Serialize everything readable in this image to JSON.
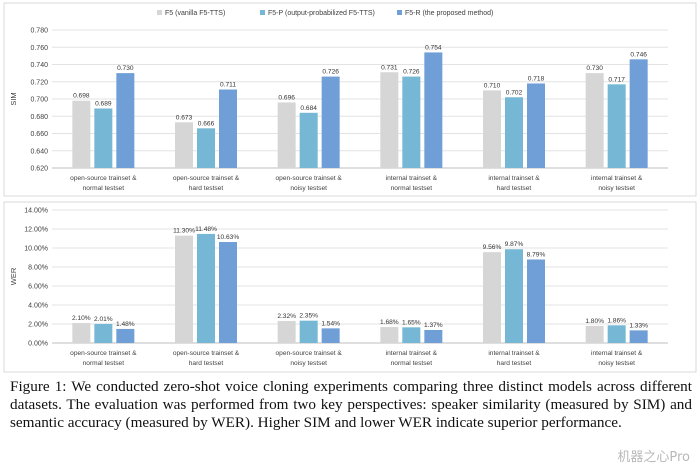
{
  "colors": {
    "f5": "#d6d6d6",
    "f5p": "#75b7d5",
    "f5r": "#6f9fd6",
    "grid": "#e3e3e3",
    "axis": "#bfbfbf",
    "text": "#404040"
  },
  "chart_data": [
    {
      "type": "bar",
      "ylabel": "SIM",
      "ylim": [
        0.62,
        0.78
      ],
      "yticks": [
        "0.620",
        "0.640",
        "0.660",
        "0.680",
        "0.700",
        "0.720",
        "0.740",
        "0.760",
        "0.780"
      ],
      "categories": [
        [
          "open-source trainset &",
          "normal testset"
        ],
        [
          "open-source trainset &",
          "hard testset"
        ],
        [
          "open-source trainset &",
          "noisy testset"
        ],
        [
          "internal trainset &",
          "normal testset"
        ],
        [
          "internal trainset &",
          "hard testset"
        ],
        [
          "internal trainset &",
          "noisy testset"
        ]
      ],
      "legend": "top",
      "series": [
        {
          "name": "F5 (vanilla F5-TTS)",
          "color": "#d6d6d6",
          "values": [
            0.698,
            0.673,
            0.696,
            0.731,
            0.71,
            0.73
          ],
          "labels": [
            "0.698",
            "0.673",
            "0.696",
            "0.731",
            "0.710",
            "0.730"
          ]
        },
        {
          "name": "F5-P (output-probabilized F5-TTS)",
          "color": "#75b7d5",
          "values": [
            0.689,
            0.666,
            0.684,
            0.726,
            0.702,
            0.717
          ],
          "labels": [
            "0.689",
            "0.666",
            "0.684",
            "0.726",
            "0.702",
            "0.717"
          ]
        },
        {
          "name": "F5-R (the proposed method)",
          "color": "#6f9fd6",
          "values": [
            0.73,
            0.711,
            0.726,
            0.754,
            0.718,
            0.746
          ],
          "labels": [
            "0.730",
            "0.711",
            "0.726",
            "0.754",
            "0.718",
            "0.746"
          ]
        }
      ]
    },
    {
      "type": "bar",
      "ylabel": "WER",
      "ylim": [
        0,
        14
      ],
      "yticks": [
        "0.00%",
        "2.00%",
        "4.00%",
        "6.00%",
        "8.00%",
        "10.00%",
        "12.00%",
        "14.00%"
      ],
      "categories": [
        [
          "open-source trainset &",
          "normal testset"
        ],
        [
          "open-source trainset &",
          "hard testset"
        ],
        [
          "open-source trainset &",
          "noisy testset"
        ],
        [
          "internal trainset &",
          "normal testset"
        ],
        [
          "internal trainset &",
          "hard testset"
        ],
        [
          "internal trainset &",
          "noisy testset"
        ]
      ],
      "series": [
        {
          "color": "#d6d6d6",
          "values": [
            2.1,
            11.3,
            2.32,
            1.68,
            9.56,
            1.8
          ],
          "labels": [
            "2.10%",
            "11.30%",
            "2.32%",
            "1.68%",
            "9.56%",
            "1.80%"
          ]
        },
        {
          "color": "#75b7d5",
          "values": [
            2.01,
            11.48,
            2.35,
            1.65,
            9.87,
            1.86
          ],
          "labels": [
            "2.01%",
            "11.48%",
            "2.35%",
            "1.65%",
            "9.87%",
            "1.86%"
          ]
        },
        {
          "color": "#6f9fd6",
          "values": [
            1.48,
            10.63,
            1.54,
            1.37,
            8.79,
            1.33
          ],
          "labels": [
            "1.48%",
            "10.63%",
            "1.54%",
            "1.37%",
            "8.79%",
            "1.33%"
          ]
        }
      ]
    }
  ],
  "caption": "Figure 1: We conducted zero-shot voice cloning experiments comparing three distinct models across different datasets.  The evaluation was performed from two key perspectives: speaker similarity (measured by SIM) and semantic accuracy (measured by WER). Higher SIM and lower WER indicate superior performance.",
  "watermark": "机器之心Pro"
}
